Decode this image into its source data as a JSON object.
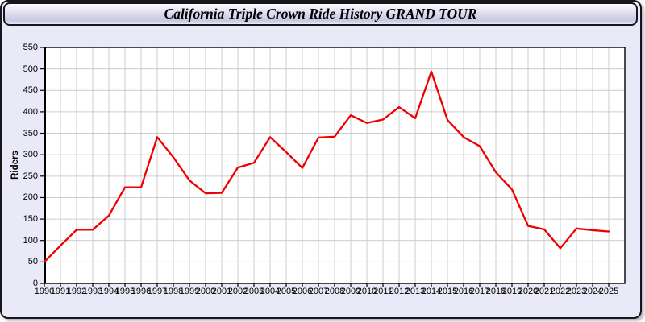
{
  "window": {
    "title": "California Triple Crown Ride History GRAND TOUR"
  },
  "colors": {
    "window_background": "#e9e9f8",
    "titlebar_gradient": [
      "#fbfbfe",
      "#d4d4ea",
      "#c7c7e2",
      "#eeeef8"
    ],
    "window_border": "#16161c",
    "plot_background": "#ffffff",
    "plot_frame": "#000000",
    "gridline": "#cccccc",
    "line_series": "#ee0000",
    "label_text": "#000000"
  },
  "chart_data": {
    "type": "line",
    "title": "California Triple Crown Ride History GRAND TOUR",
    "xlabel": "",
    "ylabel": "Riders",
    "legend": false,
    "grid": true,
    "xlim": [
      1990,
      2026
    ],
    "ylim": [
      0,
      550
    ],
    "ytick_step": 50,
    "yticks": [
      0,
      50,
      100,
      150,
      200,
      250,
      300,
      350,
      400,
      450,
      500,
      550
    ],
    "x": [
      1990,
      1991,
      1992,
      1993,
      1994,
      1995,
      1996,
      1997,
      1998,
      1999,
      2000,
      2001,
      2002,
      2003,
      2004,
      2005,
      2006,
      2007,
      2008,
      2009,
      2010,
      2011,
      2012,
      2013,
      2014,
      2015,
      2016,
      2017,
      2018,
      2019,
      2020,
      2021,
      2022,
      2023,
      2024,
      2025
    ],
    "series": [
      {
        "name": "Riders",
        "color": "#ee0000",
        "values": [
          50,
          88,
          125,
          125,
          158,
          224,
          224,
          341,
          294,
          240,
          210,
          211,
          270,
          281,
          341,
          306,
          269,
          340,
          342,
          392,
          374,
          382,
          411,
          385,
          494,
          381,
          341,
          320,
          259,
          219,
          134,
          126,
          82,
          128,
          124,
          121
        ]
      }
    ]
  }
}
